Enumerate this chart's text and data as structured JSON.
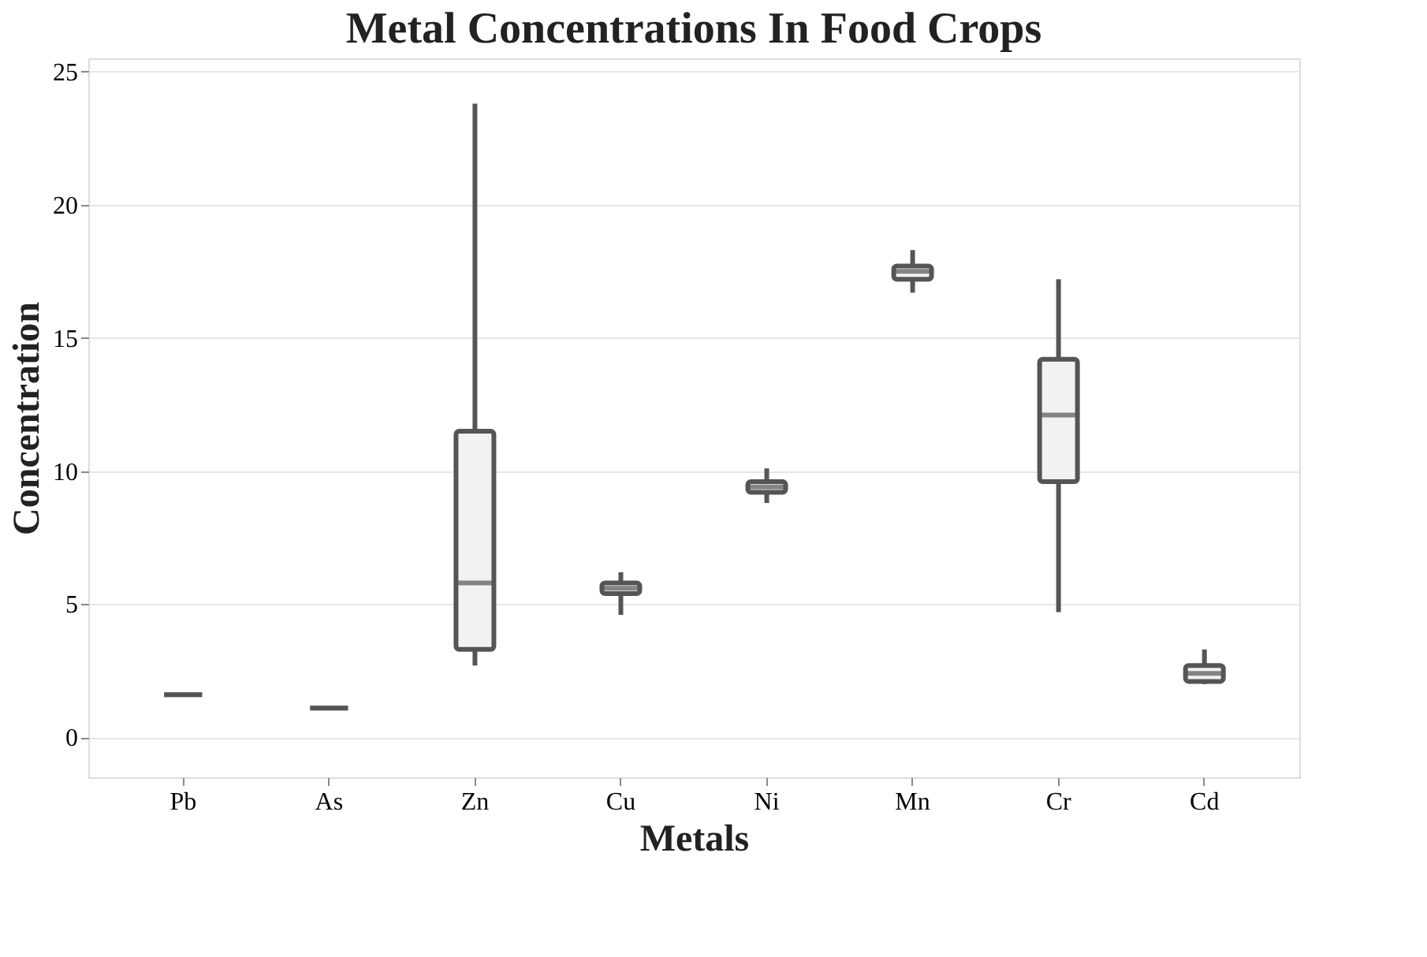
{
  "chart_data": {
    "type": "box",
    "title": "Metal Concentrations In Food Crops",
    "xlabel": "Metals",
    "ylabel": "Concentration",
    "categories": [
      "Pb",
      "As",
      "Zn",
      "Cu",
      "Ni",
      "Mn",
      "Cr",
      "Cd"
    ],
    "boxes": [
      {
        "low": 1.6,
        "q1": 1.6,
        "median": 1.6,
        "q3": 1.6,
        "high": 1.6
      },
      {
        "low": 1.1,
        "q1": 1.1,
        "median": 1.1,
        "q3": 1.1,
        "high": 1.1
      },
      {
        "low": 2.7,
        "q1": 3.3,
        "median": 5.8,
        "q3": 11.5,
        "high": 23.8
      },
      {
        "low": 4.6,
        "q1": 5.4,
        "median": 5.6,
        "q3": 5.8,
        "high": 6.2
      },
      {
        "low": 8.8,
        "q1": 9.2,
        "median": 9.4,
        "q3": 9.6,
        "high": 10.1
      },
      {
        "low": 16.7,
        "q1": 17.2,
        "median": 17.5,
        "q3": 17.7,
        "high": 18.3
      },
      {
        "low": 4.7,
        "q1": 9.6,
        "median": 12.1,
        "q3": 14.2,
        "high": 17.2
      },
      {
        "low": 2.0,
        "q1": 2.1,
        "median": 2.4,
        "q3": 2.7,
        "high": 3.3
      }
    ],
    "color": "#555555",
    "ylim": [
      -1.5,
      25.5
    ],
    "yticks": [
      0,
      5,
      10,
      15,
      20,
      25
    ],
    "grid": "y"
  }
}
